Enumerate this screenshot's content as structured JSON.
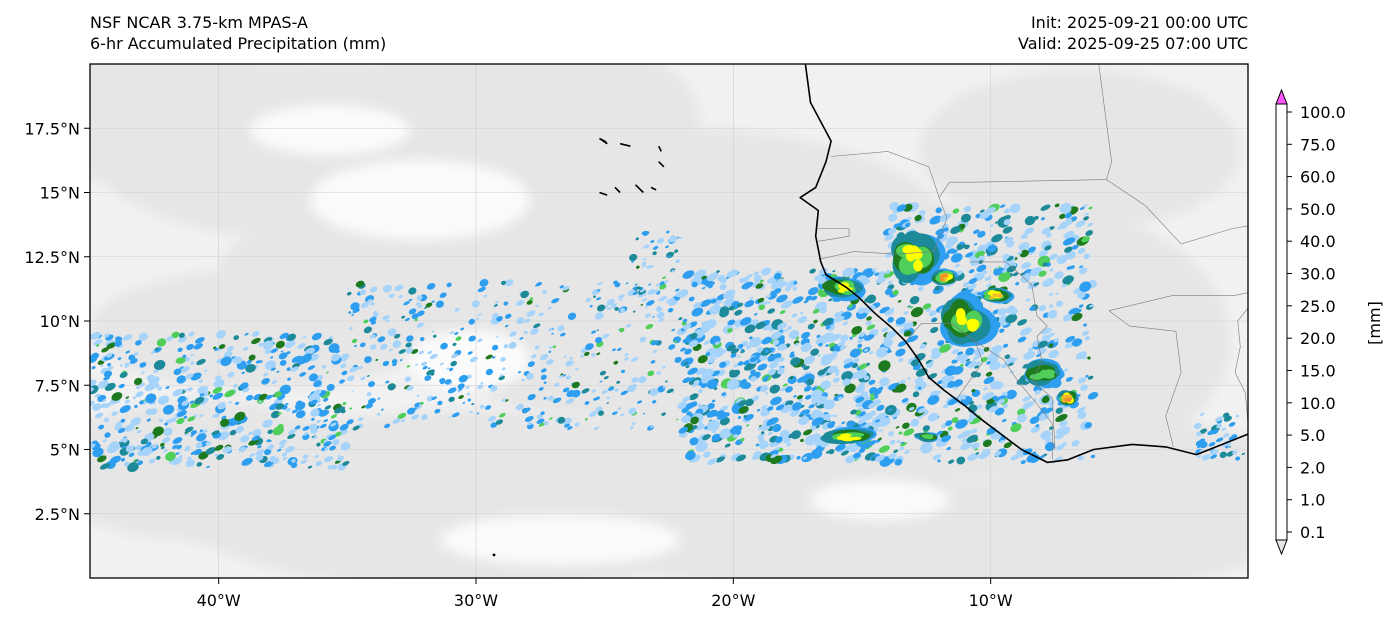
{
  "header": {
    "model": "NSF NCAR 3.75-km MPAS-A",
    "field": "6-hr Accumulated Precipitation (mm)",
    "init": "Init: 2025-09-21 00:00 UTC",
    "valid": "Valid: 2025-09-25 07:00 UTC"
  },
  "map": {
    "lon_range": [
      -45,
      0
    ],
    "lat_range": [
      0,
      20
    ],
    "lon_ticks": [
      {
        "value": -40,
        "label": "40°W"
      },
      {
        "value": -30,
        "label": "30°W"
      },
      {
        "value": -20,
        "label": "20°W"
      },
      {
        "value": -10,
        "label": "10°W"
      }
    ],
    "lat_ticks": [
      {
        "value": 2.5,
        "label": "2.5°N"
      },
      {
        "value": 5,
        "label": "5°N"
      },
      {
        "value": 7.5,
        "label": "7.5°N"
      },
      {
        "value": 10,
        "label": "10°N"
      },
      {
        "value": 12.5,
        "label": "12.5°N"
      },
      {
        "value": 15,
        "label": "15°N"
      },
      {
        "value": 17.5,
        "label": "17.5°N"
      }
    ],
    "coastline": [
      [
        -17.2,
        20.0
      ],
      [
        -17.0,
        18.5
      ],
      [
        -16.2,
        17.0
      ],
      [
        -16.4,
        16.2
      ],
      [
        -16.8,
        15.2
      ],
      [
        -17.4,
        14.8
      ],
      [
        -16.7,
        14.3
      ],
      [
        -16.8,
        13.3
      ],
      [
        -16.6,
        12.3
      ],
      [
        -16.4,
        11.8
      ],
      [
        -15.6,
        11.3
      ],
      [
        -15.1,
        10.9
      ],
      [
        -14.5,
        10.3
      ],
      [
        -13.8,
        9.7
      ],
      [
        -13.3,
        9.2
      ],
      [
        -12.8,
        8.5
      ],
      [
        -12.4,
        7.8
      ],
      [
        -11.8,
        7.3
      ],
      [
        -11.0,
        6.7
      ],
      [
        -10.4,
        6.2
      ],
      [
        -9.6,
        5.6
      ],
      [
        -8.8,
        5.0
      ],
      [
        -7.8,
        4.5
      ],
      [
        -7.0,
        4.6
      ],
      [
        -6.0,
        5.0
      ],
      [
        -4.5,
        5.2
      ],
      [
        -3.2,
        5.1
      ],
      [
        -2.0,
        4.8
      ],
      [
        -1.0,
        5.2
      ],
      [
        0.0,
        5.6
      ]
    ],
    "islands": [
      [
        [
          -25.2,
          17.1
        ],
        [
          -24.9,
          16.9
        ],
        [
          -25.0,
          17.0
        ]
      ],
      [
        [
          -24.4,
          16.9
        ],
        [
          -24.0,
          16.8
        ]
      ],
      [
        [
          -22.9,
          16.8
        ],
        [
          -22.8,
          16.6
        ]
      ],
      [
        [
          -22.9,
          16.2
        ],
        [
          -22.7,
          16.0
        ]
      ],
      [
        [
          -24.6,
          15.2
        ],
        [
          -24.4,
          15.0
        ]
      ],
      [
        [
          -23.8,
          15.3
        ],
        [
          -23.5,
          15.0
        ]
      ],
      [
        [
          -23.2,
          15.2
        ],
        [
          -23.0,
          15.1
        ]
      ],
      [
        [
          -25.2,
          15.0
        ],
        [
          -24.9,
          14.9
        ]
      ]
    ],
    "borders": [
      [
        [
          -12.0,
          14.8
        ],
        [
          -12.4,
          16.0
        ],
        [
          -14.0,
          16.6
        ],
        [
          -16.2,
          16.4
        ]
      ],
      [
        [
          -12.0,
          14.8
        ],
        [
          -11.7,
          14.0
        ],
        [
          -12.2,
          12.7
        ],
        [
          -13.7,
          12.6
        ],
        [
          -15.3,
          12.7
        ],
        [
          -16.7,
          12.4
        ]
      ],
      [
        [
          -16.8,
          13.6
        ],
        [
          -15.5,
          13.6
        ],
        [
          -15.5,
          13.3
        ],
        [
          -16.7,
          13.1
        ]
      ],
      [
        [
          -12.0,
          14.8
        ],
        [
          -11.6,
          15.4
        ],
        [
          -10.7,
          15.4
        ],
        [
          -5.5,
          15.5
        ],
        [
          -5.3,
          16.2
        ],
        [
          -5.8,
          20.0
        ]
      ],
      [
        [
          -10.8,
          12.3
        ],
        [
          -9.4,
          12.3
        ],
        [
          -8.4,
          11.4
        ],
        [
          -8.2,
          10.2
        ],
        [
          -7.8,
          9.8
        ],
        [
          -8.2,
          9.4
        ],
        [
          -8.0,
          8.4
        ],
        [
          -8.4,
          7.7
        ],
        [
          -7.6,
          7.0
        ],
        [
          -7.5,
          5.0
        ]
      ],
      [
        [
          -13.3,
          9.2
        ],
        [
          -12.7,
          9.9
        ],
        [
          -11.5,
          9.9
        ],
        [
          -10.6,
          9.2
        ],
        [
          -10.3,
          8.4
        ],
        [
          -11.3,
          7.0
        ]
      ],
      [
        [
          -10.6,
          9.2
        ],
        [
          -9.5,
          8.5
        ],
        [
          -8.9,
          7.6
        ],
        [
          -8.3,
          6.9
        ],
        [
          -7.6,
          6.0
        ],
        [
          -7.6,
          4.6
        ]
      ],
      [
        [
          -5.5,
          15.5
        ],
        [
          -4.0,
          14.5
        ],
        [
          -2.6,
          13.0
        ],
        [
          -0.6,
          13.6
        ],
        [
          0,
          13.7
        ]
      ],
      [
        [
          -5.4,
          10.4
        ],
        [
          -2.9,
          11.0
        ],
        [
          -0.5,
          11.0
        ],
        [
          0,
          11.1
        ]
      ],
      [
        [
          -2.8,
          9.6
        ],
        [
          -2.6,
          8.0
        ],
        [
          -3.2,
          6.3
        ],
        [
          -2.9,
          5.1
        ]
      ],
      [
        [
          0,
          10.5
        ],
        [
          -0.4,
          10.0
        ],
        [
          -0.3,
          9.0
        ],
        [
          -0.5,
          8.0
        ],
        [
          -0.1,
          7.2
        ],
        [
          0,
          6.0
        ]
      ],
      [
        [
          -5.4,
          10.4
        ],
        [
          -4.6,
          9.8
        ],
        [
          -2.8,
          9.6
        ]
      ]
    ],
    "precip_clusters": [
      {
        "lon": -13,
        "lat": 12.5,
        "rx": 1.0,
        "ry": 1.0,
        "level": 6
      },
      {
        "lon": -11.8,
        "lat": 11.7,
        "rx": 0.5,
        "ry": 0.3,
        "level": 8
      },
      {
        "lon": -11,
        "lat": 10.0,
        "rx": 1.0,
        "ry": 1.0,
        "level": 6
      },
      {
        "lon": -9.8,
        "lat": 11.0,
        "rx": 0.6,
        "ry": 0.3,
        "level": 7
      },
      {
        "lon": -8.0,
        "lat": 8.0,
        "rx": 0.8,
        "ry": 0.5,
        "level": 5
      },
      {
        "lon": -7.0,
        "lat": 7.0,
        "rx": 0.4,
        "ry": 0.3,
        "level": 8
      },
      {
        "lon": -15.8,
        "lat": 11.3,
        "rx": 0.8,
        "ry": 0.4,
        "level": 6
      },
      {
        "lon": -15.5,
        "lat": 5.5,
        "rx": 1.0,
        "ry": 0.3,
        "level": 6
      },
      {
        "lon": -12.5,
        "lat": 5.5,
        "rx": 0.5,
        "ry": 0.2,
        "level": 5
      }
    ]
  },
  "colorbar": {
    "unit_label": "[mm]",
    "levels": [
      "0.1",
      "1.0",
      "2.0",
      "5.0",
      "10.0",
      "15.0",
      "20.0",
      "25.0",
      "30.0",
      "40.0",
      "50.0",
      "60.0",
      "75.0",
      "100.0"
    ],
    "colors": [
      "#e6e6e6",
      "#a6d3fa",
      "#2e9ef0",
      "#1d8a9a",
      "#1e7a1e",
      "#4fce5a",
      "#ffff00",
      "#f7bb2a",
      "#f1902a",
      "#d42c1c",
      "#c0110f",
      "#a20000",
      "#800080",
      "#ff55ff"
    ]
  }
}
